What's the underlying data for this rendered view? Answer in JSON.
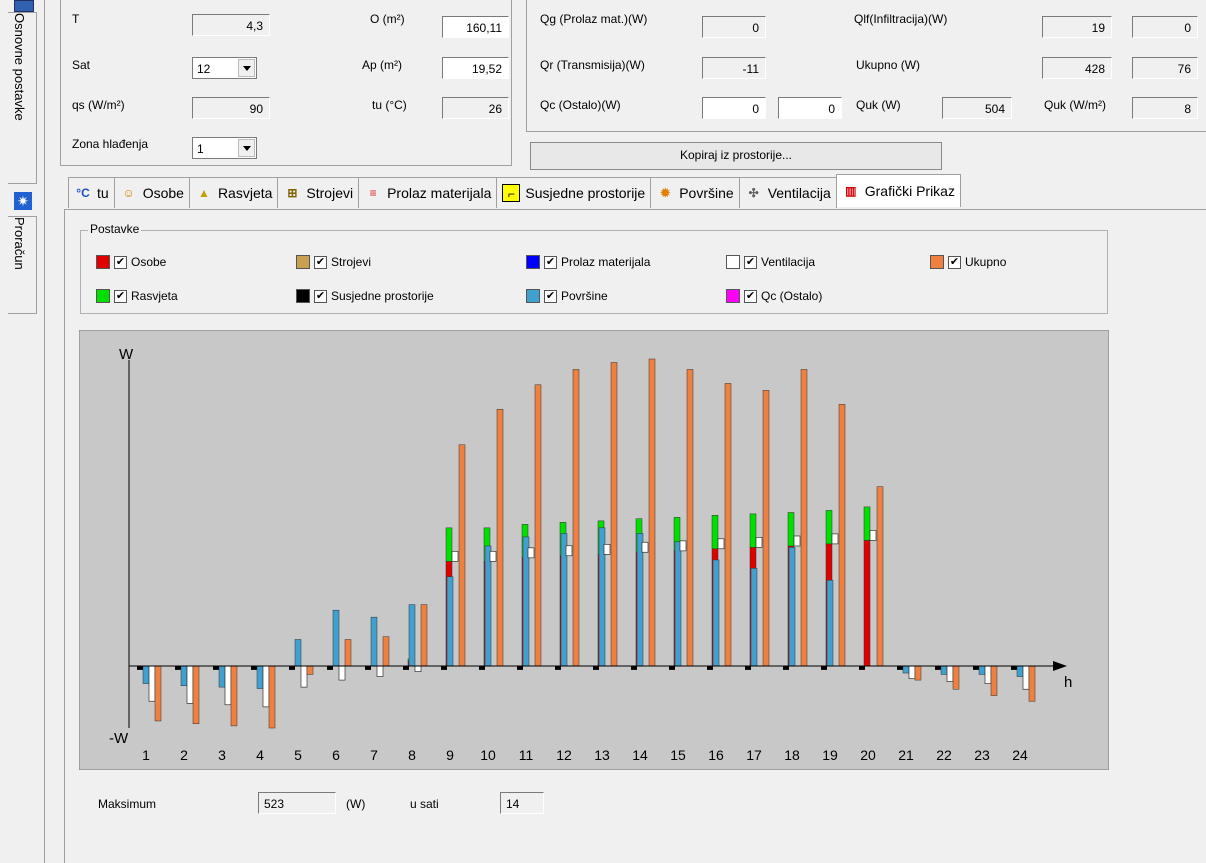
{
  "side_tabs": {
    "basic": "Osnovne postavke",
    "calc": "Proračun"
  },
  "left_fields": {
    "T": {
      "label": "T",
      "value": "4,3"
    },
    "sat": {
      "label": "Sat",
      "value": "12"
    },
    "qs": {
      "label": "qs (W/m²)",
      "value": "90"
    },
    "zona": {
      "label": "Zona hlađenja",
      "value": "1"
    },
    "O": {
      "label": "O (m²)",
      "value": "160,11"
    },
    "Ap": {
      "label": "Ap (m²)",
      "value": "19,52"
    },
    "tu": {
      "label": "tu (°C)",
      "value": "26"
    }
  },
  "right_fields": {
    "Qg": {
      "label": "Qg (Prolaz mat.)(W)",
      "value": "0"
    },
    "Qr": {
      "label": "Qr (Transmisija)(W)",
      "value": "-11"
    },
    "Qc": {
      "label": "Qc (Ostalo)(W)",
      "value1": "0",
      "value2": "0"
    },
    "Qlf": {
      "label": "Qlf(Infiltracija)(W)",
      "value1": "19",
      "value2": "0"
    },
    "Ukupno": {
      "label": "Ukupno (W)",
      "value1": "428",
      "value2": "76"
    },
    "Quk": {
      "label": "Quk (W)",
      "value": "504"
    },
    "QukM2": {
      "label": "Quk (W/m²)",
      "value": "8"
    }
  },
  "copy_button": "Kopiraj iz prostorije...",
  "tabs": [
    {
      "label": "tu",
      "icon": "temperature-icon"
    },
    {
      "label": "Osobe",
      "icon": "people-icon"
    },
    {
      "label": "Rasvjeta",
      "icon": "lamp-icon"
    },
    {
      "label": "Strojevi",
      "icon": "machine-icon"
    },
    {
      "label": "Prolaz materijala",
      "icon": "material-icon"
    },
    {
      "label": "Susjedne prostorije",
      "icon": "adjacent-room-icon"
    },
    {
      "label": "Površine",
      "icon": "sun-icon"
    },
    {
      "label": "Ventilacija",
      "icon": "fan-icon"
    },
    {
      "label": "Grafički Prikaz",
      "icon": "bar-chart-icon"
    }
  ],
  "settings": {
    "title": "Postavke",
    "items": [
      {
        "label": "Osobe",
        "color": "#e00000",
        "checked": true
      },
      {
        "label": "Strojevi",
        "color": "#c8a050",
        "checked": true
      },
      {
        "label": "Prolaz materijala",
        "color": "#0000ff",
        "checked": true
      },
      {
        "label": "Ventilacija",
        "color": "#ffffff",
        "checked": true
      },
      {
        "label": "Ukupno",
        "color": "#f08040",
        "checked": true
      },
      {
        "label": "Rasvjeta",
        "color": "#00e000",
        "checked": true
      },
      {
        "label": "Susjedne prostorije",
        "color": "#000000",
        "checked": true
      },
      {
        "label": "Površine",
        "color": "#40a0d0",
        "checked": true
      },
      {
        "label": "Qc (Ostalo)",
        "color": "#ff00ff",
        "checked": true
      }
    ]
  },
  "chart_data": {
    "type": "bar",
    "ylabel_pos": "W",
    "ylabel_neg": "-W",
    "xlabel": "h",
    "categories": [
      "1",
      "2",
      "3",
      "4",
      "5",
      "6",
      "7",
      "8",
      "9",
      "10",
      "11",
      "12",
      "13",
      "14",
      "15",
      "16",
      "17",
      "18",
      "19",
      "20",
      "21",
      "22",
      "23",
      "24"
    ],
    "series": [
      {
        "name": "Susjedne prostorije",
        "color": "#000000",
        "values": [
          -7,
          -7,
          -7,
          -7,
          -7,
          -7,
          -7,
          -7,
          -7,
          -7,
          -7,
          -7,
          -7,
          -7,
          -7,
          -7,
          -7,
          -7,
          -7,
          -7,
          -7,
          -7,
          -7,
          -7
        ]
      },
      {
        "name": "Osobe",
        "color": "#e00000",
        "values": [
          0,
          0,
          0,
          0,
          0,
          0,
          0,
          7,
          150,
          150,
          155,
          158,
          160,
          163,
          165,
          168,
          170,
          172,
          175,
          180,
          0,
          0,
          0,
          0
        ]
      },
      {
        "name": "Rasvjeta",
        "color": "#00e000",
        "values": [
          0,
          0,
          0,
          0,
          0,
          0,
          0,
          3,
          48,
          48,
          48,
          48,
          48,
          48,
          48,
          48,
          48,
          48,
          48,
          48,
          0,
          0,
          0,
          0
        ]
      },
      {
        "name": "Površine",
        "color": "#40a0d0",
        "values": [
          -25,
          -28,
          -30,
          -32,
          38,
          80,
          70,
          88,
          128,
          172,
          185,
          190,
          198,
          190,
          178,
          152,
          140,
          170,
          123,
          0,
          -10,
          -12,
          -12,
          -15
        ]
      },
      {
        "name": "Ventilacija",
        "color": "#ffffff",
        "values": [
          -50,
          -53,
          -55,
          -58,
          -30,
          -20,
          -15,
          -8,
          0,
          0,
          0,
          0,
          0,
          0,
          0,
          0,
          0,
          0,
          0,
          0,
          -18,
          -22,
          -25,
          -33
        ]
      },
      {
        "name": "Ukupno",
        "color": "#f08040",
        "values": [
          -78,
          -82,
          -85,
          -88,
          -12,
          38,
          42,
          88,
          317,
          368,
          403,
          425,
          435,
          440,
          425,
          405,
          395,
          425,
          375,
          257,
          -20,
          -33,
          -42,
          -50
        ]
      }
    ],
    "ylim": [
      -88,
      450
    ]
  },
  "bottom": {
    "max_label": "Maksimum",
    "max_value": "523",
    "unit": "(W)",
    "hour_label": "u sati",
    "hour_value": "14"
  }
}
